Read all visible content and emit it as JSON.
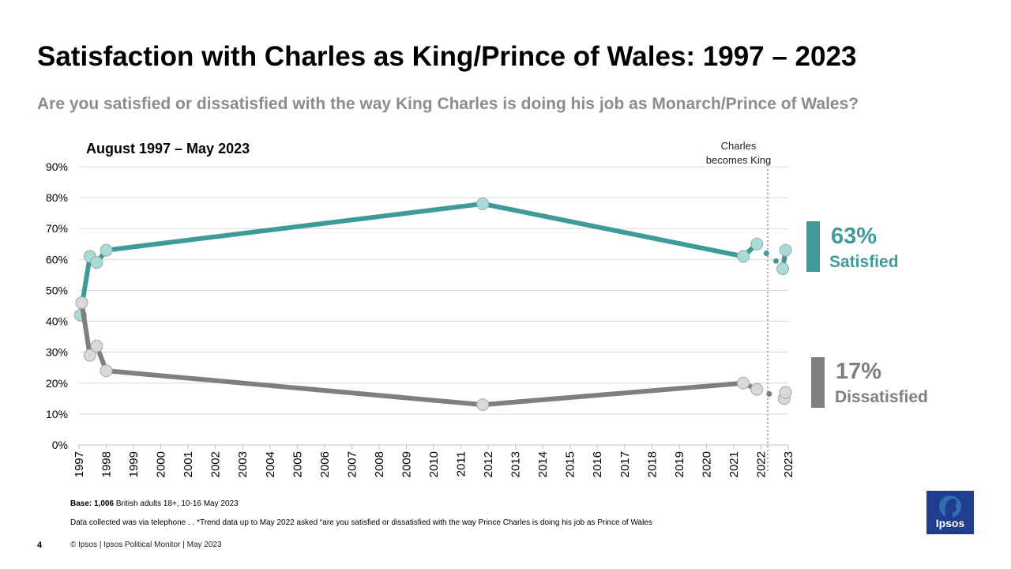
{
  "title": "Satisfaction with Charles as King/Prince of Wales: 1997 – 2023",
  "subtitle": "Are you satisfied or dissatisfied with the way King Charles is doing his job as Monarch/Prince of Wales?",
  "range_label": "August 1997 – May 2023",
  "event": {
    "line1": "Charles",
    "line2": "becomes King",
    "year": 2022.25
  },
  "summary": {
    "satisfied": {
      "value": "63%",
      "label": "Satisfied"
    },
    "dissatisfied": {
      "value": "17%",
      "label": "Dissatisfied"
    }
  },
  "footer": {
    "base_bold": "Base: 1,006",
    "base_rest": " British adults 18+, 10-16 May 2023",
    "note": "Data collected was via telephone . . *Trend data up to May 2022 asked “are you satisfied or dissatisfied with the way Prince Charles is doing his job as Prince of Wales",
    "page": "4",
    "copyright": "© Ipsos | Ipsos Political Monitor | May 2023"
  },
  "logo_text": "Ipsos",
  "colors": {
    "satisfied": "#3f9a9a",
    "satisfied_marker": "#a8dcd8",
    "dissatisfied": "#7f7f7f",
    "dissatisfied_marker": "#d9d9d9",
    "grid": "#d9d9d9"
  },
  "chart_data": {
    "type": "line",
    "xlim": [
      1997,
      2023
    ],
    "ylim": [
      0,
      90
    ],
    "xticks": [
      "1997",
      "1998",
      "1999",
      "2000",
      "2001",
      "2002",
      "2003",
      "2004",
      "2005",
      "2006",
      "2007",
      "2008",
      "2009",
      "2010",
      "2011",
      "2012",
      "2013",
      "2014",
      "2015",
      "2016",
      "2017",
      "2018",
      "2019",
      "2020",
      "2021",
      "2022",
      "2023"
    ],
    "yticks": [
      "0%",
      "10%",
      "20%",
      "30%",
      "40%",
      "50%",
      "60%",
      "70%",
      "80%",
      "90%"
    ],
    "series": [
      {
        "name": "Satisfied",
        "points": [
          [
            1997.05,
            42
          ],
          [
            1997.4,
            61
          ],
          [
            1997.65,
            59
          ],
          [
            1998.0,
            63
          ],
          [
            2011.8,
            78
          ],
          [
            2021.35,
            61
          ],
          [
            2021.85,
            65
          ],
          [
            2022.8,
            57
          ],
          [
            2022.9,
            63
          ]
        ],
        "dotted": [
          [
            2021.85,
            65
          ],
          [
            2022.2,
            62
          ],
          [
            2022.55,
            59.5
          ],
          [
            2022.8,
            57
          ]
        ]
      },
      {
        "name": "Dissatisfied",
        "points": [
          [
            1997.1,
            46
          ],
          [
            1997.4,
            29
          ],
          [
            1997.65,
            32
          ],
          [
            1998.0,
            24
          ],
          [
            2011.8,
            13
          ],
          [
            2021.35,
            20
          ],
          [
            2021.85,
            18
          ],
          [
            2022.85,
            15
          ],
          [
            2022.9,
            17
          ]
        ],
        "dotted": [
          [
            2021.85,
            18
          ],
          [
            2022.3,
            16.5
          ],
          [
            2022.85,
            15
          ]
        ]
      }
    ]
  }
}
